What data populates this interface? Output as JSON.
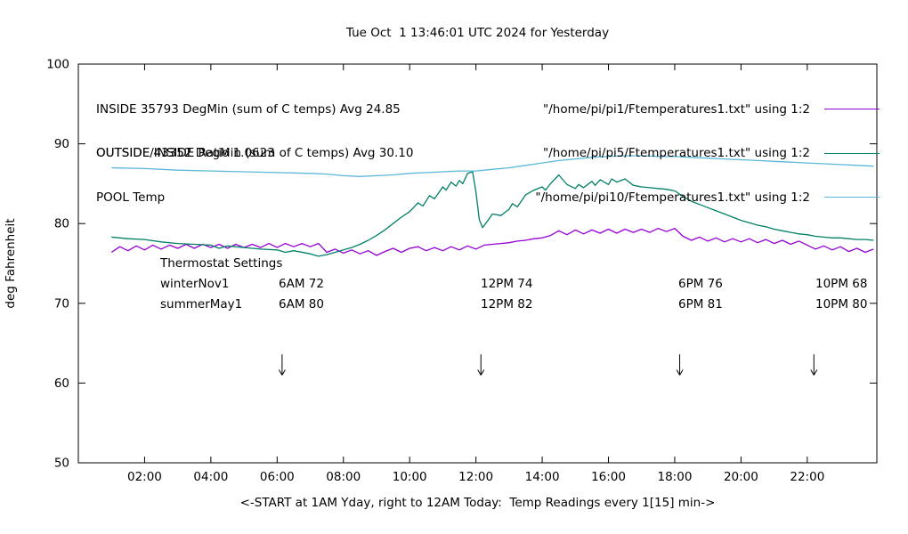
{
  "title": "Tue Oct  1 13:46:01 UTC 2024 for Yesterday",
  "ratio_text": "OUTSIDE/INSIDE Ratio 1.0623",
  "legend": [
    {
      "label": "INSIDE 35793 DegMin (sum of C temps) Avg 24.85",
      "file": "\"/home/pi/pi1/Ftemperatures1.txt\" using 1:2",
      "color": "#9400d3"
    },
    {
      "label": "OUTSIDE 43352 DegMin (sum of C temps) Avg 30.10",
      "file": "\"/home/pi/pi5/Ftemperatures1.txt\" using 1:2",
      "color": "#008066"
    },
    {
      "label": "POOL Temp",
      "file": "\"/home/pi/pi10/Ftemperatures1.txt\" using 1:2",
      "color": "#5ab8d8"
    }
  ],
  "thermostat": {
    "title": "Thermostat Settings",
    "rows": [
      {
        "name": "winterNov1",
        "cells": [
          "6AM 72",
          "12PM 74",
          "6PM 76",
          "10PM 68"
        ]
      },
      {
        "name": "summerMay1",
        "cells": [
          "6AM 80",
          "12PM 82",
          "6PM 81",
          "10PM 80"
        ]
      }
    ]
  },
  "chart_data": {
    "type": "line",
    "title": "Tue Oct  1 13:46:01 UTC 2024 for Yesterday",
    "xlabel": "<-START at 1AM Yday, right to 12AM Today:  Temp Readings every 1[15] min->",
    "ylabel": "deg Fahrenheit",
    "xlim": [
      0,
      24.1
    ],
    "ylim": [
      50,
      100
    ],
    "grid": false,
    "legend_position": "top-left-inside",
    "x_ticks": [
      {
        "value": 2,
        "label": "02:00"
      },
      {
        "value": 4,
        "label": "04:00"
      },
      {
        "value": 6,
        "label": "06:00"
      },
      {
        "value": 8,
        "label": "08:00"
      },
      {
        "value": 10,
        "label": "10:00"
      },
      {
        "value": 12,
        "label": "12:00"
      },
      {
        "value": 14,
        "label": "14:00"
      },
      {
        "value": 16,
        "label": "16:00"
      },
      {
        "value": 18,
        "label": "18:00"
      },
      {
        "value": 20,
        "label": "20:00"
      },
      {
        "value": 22,
        "label": "22:00"
      }
    ],
    "y_ticks": [
      50,
      60,
      70,
      80,
      90,
      100
    ],
    "arrows": {
      "x_hours": [
        6.15,
        12.15,
        18.15,
        22.2
      ],
      "y_from": 63.6,
      "y_to": 61.0
    },
    "series": [
      {
        "name": "INSIDE",
        "color": "#9400d3",
        "points": [
          [
            1,
            76.4
          ],
          [
            1.25,
            77.1
          ],
          [
            1.5,
            76.6
          ],
          [
            1.75,
            77.2
          ],
          [
            2,
            76.7
          ],
          [
            2.25,
            77.3
          ],
          [
            2.5,
            76.8
          ],
          [
            2.75,
            77.3
          ],
          [
            3,
            76.9
          ],
          [
            3.25,
            77.4
          ],
          [
            3.5,
            76.9
          ],
          [
            3.75,
            77.4
          ],
          [
            4,
            77
          ],
          [
            4.25,
            77.4
          ],
          [
            4.5,
            76.9
          ],
          [
            4.75,
            77.4
          ],
          [
            5,
            77
          ],
          [
            5.25,
            77.4
          ],
          [
            5.5,
            77
          ],
          [
            5.75,
            77.5
          ],
          [
            6,
            77
          ],
          [
            6.25,
            77.5
          ],
          [
            6.5,
            77.1
          ],
          [
            6.75,
            77.5
          ],
          [
            7,
            77.1
          ],
          [
            7.25,
            77.5
          ],
          [
            7.5,
            76.4
          ],
          [
            7.75,
            76.8
          ],
          [
            8,
            76.3
          ],
          [
            8.25,
            76.7
          ],
          [
            8.5,
            76.2
          ],
          [
            8.75,
            76.6
          ],
          [
            9,
            76
          ],
          [
            9.25,
            76.5
          ],
          [
            9.5,
            76.9
          ],
          [
            9.75,
            76.4
          ],
          [
            10,
            76.9
          ],
          [
            10.25,
            77.1
          ],
          [
            10.5,
            76.6
          ],
          [
            10.75,
            77
          ],
          [
            11,
            76.6
          ],
          [
            11.25,
            77.1
          ],
          [
            11.5,
            76.7
          ],
          [
            11.75,
            77.2
          ],
          [
            12,
            76.8
          ],
          [
            12.25,
            77.3
          ],
          [
            12.5,
            77.4
          ],
          [
            12.75,
            77.5
          ],
          [
            13,
            77.6
          ],
          [
            13.25,
            77.8
          ],
          [
            13.5,
            77.9
          ],
          [
            13.75,
            78.1
          ],
          [
            14,
            78.2
          ],
          [
            14.25,
            78.5
          ],
          [
            14.5,
            79.1
          ],
          [
            14.75,
            78.6
          ],
          [
            15,
            79.2
          ],
          [
            15.25,
            78.7
          ],
          [
            15.5,
            79.2
          ],
          [
            15.75,
            78.8
          ],
          [
            16,
            79.3
          ],
          [
            16.25,
            78.8
          ],
          [
            16.5,
            79.3
          ],
          [
            16.75,
            78.9
          ],
          [
            17,
            79.3
          ],
          [
            17.25,
            78.9
          ],
          [
            17.5,
            79.4
          ],
          [
            17.75,
            79
          ],
          [
            18,
            79.4
          ],
          [
            18.25,
            78.4
          ],
          [
            18.5,
            77.9
          ],
          [
            18.75,
            78.3
          ],
          [
            19,
            77.8
          ],
          [
            19.25,
            78.2
          ],
          [
            19.5,
            77.7
          ],
          [
            19.75,
            78.1
          ],
          [
            20,
            77.7
          ],
          [
            20.25,
            78.1
          ],
          [
            20.5,
            77.6
          ],
          [
            20.75,
            78
          ],
          [
            21,
            77.5
          ],
          [
            21.25,
            77.9
          ],
          [
            21.5,
            77.4
          ],
          [
            21.75,
            77.8
          ],
          [
            22,
            77.3
          ],
          [
            22.25,
            76.8
          ],
          [
            22.5,
            77.2
          ],
          [
            22.75,
            76.7
          ],
          [
            23,
            77.1
          ],
          [
            23.25,
            76.5
          ],
          [
            23.5,
            76.9
          ],
          [
            23.75,
            76.4
          ],
          [
            24,
            76.8
          ]
        ]
      },
      {
        "name": "OUTSIDE",
        "color": "#008066",
        "points": [
          [
            1,
            78.3
          ],
          [
            1.5,
            78.1
          ],
          [
            2,
            78
          ],
          [
            2.5,
            77.7
          ],
          [
            3,
            77.5
          ],
          [
            3.5,
            77.4
          ],
          [
            4,
            77.3
          ],
          [
            4.25,
            76.9
          ],
          [
            4.5,
            77.2
          ],
          [
            5,
            77
          ],
          [
            5.5,
            76.8
          ],
          [
            6,
            76.7
          ],
          [
            6.25,
            76.4
          ],
          [
            6.5,
            76.6
          ],
          [
            7,
            76.2
          ],
          [
            7.25,
            75.9
          ],
          [
            7.5,
            76.1
          ],
          [
            7.75,
            76.4
          ],
          [
            8,
            76.7
          ],
          [
            8.25,
            77
          ],
          [
            8.5,
            77.4
          ],
          [
            8.75,
            77.9
          ],
          [
            9,
            78.5
          ],
          [
            9.25,
            79.2
          ],
          [
            9.5,
            80
          ],
          [
            9.75,
            80.8
          ],
          [
            10,
            81.5
          ],
          [
            10.25,
            82.6
          ],
          [
            10.4,
            82.2
          ],
          [
            10.6,
            83.5
          ],
          [
            10.75,
            83.1
          ],
          [
            11,
            84.6
          ],
          [
            11.1,
            84.2
          ],
          [
            11.25,
            85.2
          ],
          [
            11.4,
            84.7
          ],
          [
            11.5,
            85.4
          ],
          [
            11.6,
            85
          ],
          [
            11.75,
            86.3
          ],
          [
            11.9,
            86.5
          ],
          [
            12,
            84
          ],
          [
            12.1,
            80.5
          ],
          [
            12.2,
            79.5
          ],
          [
            12.4,
            80.6
          ],
          [
            12.5,
            81.2
          ],
          [
            12.75,
            81
          ],
          [
            13,
            81.8
          ],
          [
            13.1,
            82.5
          ],
          [
            13.25,
            82.1
          ],
          [
            13.5,
            83.6
          ],
          [
            13.75,
            84.2
          ],
          [
            14,
            84.6
          ],
          [
            14.1,
            84.2
          ],
          [
            14.25,
            85
          ],
          [
            14.5,
            86.1
          ],
          [
            14.6,
            85.6
          ],
          [
            14.75,
            84.9
          ],
          [
            15,
            84.4
          ],
          [
            15.1,
            84.9
          ],
          [
            15.25,
            84.5
          ],
          [
            15.5,
            85.3
          ],
          [
            15.6,
            84.8
          ],
          [
            15.75,
            85.5
          ],
          [
            16,
            84.9
          ],
          [
            16.1,
            85.6
          ],
          [
            16.25,
            85.2
          ],
          [
            16.5,
            85.6
          ],
          [
            16.75,
            84.8
          ],
          [
            17,
            84.6
          ],
          [
            17.25,
            84.5
          ],
          [
            17.5,
            84.4
          ],
          [
            17.75,
            84.3
          ],
          [
            18,
            84.1
          ],
          [
            18.25,
            83.4
          ],
          [
            18.5,
            82.8
          ],
          [
            18.75,
            82.4
          ],
          [
            19,
            82
          ],
          [
            19.25,
            81.6
          ],
          [
            19.5,
            81.2
          ],
          [
            19.75,
            80.8
          ],
          [
            20,
            80.4
          ],
          [
            20.25,
            80.1
          ],
          [
            20.5,
            79.8
          ],
          [
            20.75,
            79.6
          ],
          [
            21,
            79.3
          ],
          [
            21.25,
            79.1
          ],
          [
            21.5,
            78.9
          ],
          [
            21.75,
            78.7
          ],
          [
            22,
            78.6
          ],
          [
            22.25,
            78.4
          ],
          [
            22.5,
            78.3
          ],
          [
            22.75,
            78.2
          ],
          [
            23,
            78.2
          ],
          [
            23.25,
            78.1
          ],
          [
            23.5,
            78
          ],
          [
            23.75,
            78
          ],
          [
            24,
            77.9
          ]
        ]
      },
      {
        "name": "POOL",
        "color": "#5ab8d8",
        "points": [
          [
            1,
            87
          ],
          [
            2,
            86.9
          ],
          [
            3,
            86.7
          ],
          [
            4,
            86.6
          ],
          [
            5,
            86.5
          ],
          [
            6,
            86.4
          ],
          [
            7,
            86.3
          ],
          [
            7.5,
            86.2
          ],
          [
            8,
            86
          ],
          [
            8.5,
            85.9
          ],
          [
            9,
            86
          ],
          [
            9.5,
            86.1
          ],
          [
            10,
            86.3
          ],
          [
            10.5,
            86.4
          ],
          [
            11,
            86.5
          ],
          [
            11.5,
            86.6
          ],
          [
            12,
            86.6
          ],
          [
            12.5,
            86.8
          ],
          [
            13,
            87
          ],
          [
            13.5,
            87.3
          ],
          [
            14,
            87.6
          ],
          [
            14.5,
            87.9
          ],
          [
            15,
            88.1
          ],
          [
            15.5,
            88.3
          ],
          [
            16,
            88.4
          ],
          [
            16.5,
            88.5
          ],
          [
            17,
            88.5
          ],
          [
            17.5,
            88.4
          ],
          [
            18,
            88.4
          ],
          [
            18.5,
            88.3
          ],
          [
            19,
            88.2
          ],
          [
            19.5,
            88.1
          ],
          [
            20,
            88
          ],
          [
            20.5,
            87.9
          ],
          [
            21,
            87.8
          ],
          [
            21.5,
            87.7
          ],
          [
            22,
            87.6
          ],
          [
            22.5,
            87.5
          ],
          [
            23,
            87.4
          ],
          [
            23.5,
            87.3
          ],
          [
            24,
            87.2
          ]
        ]
      }
    ]
  }
}
